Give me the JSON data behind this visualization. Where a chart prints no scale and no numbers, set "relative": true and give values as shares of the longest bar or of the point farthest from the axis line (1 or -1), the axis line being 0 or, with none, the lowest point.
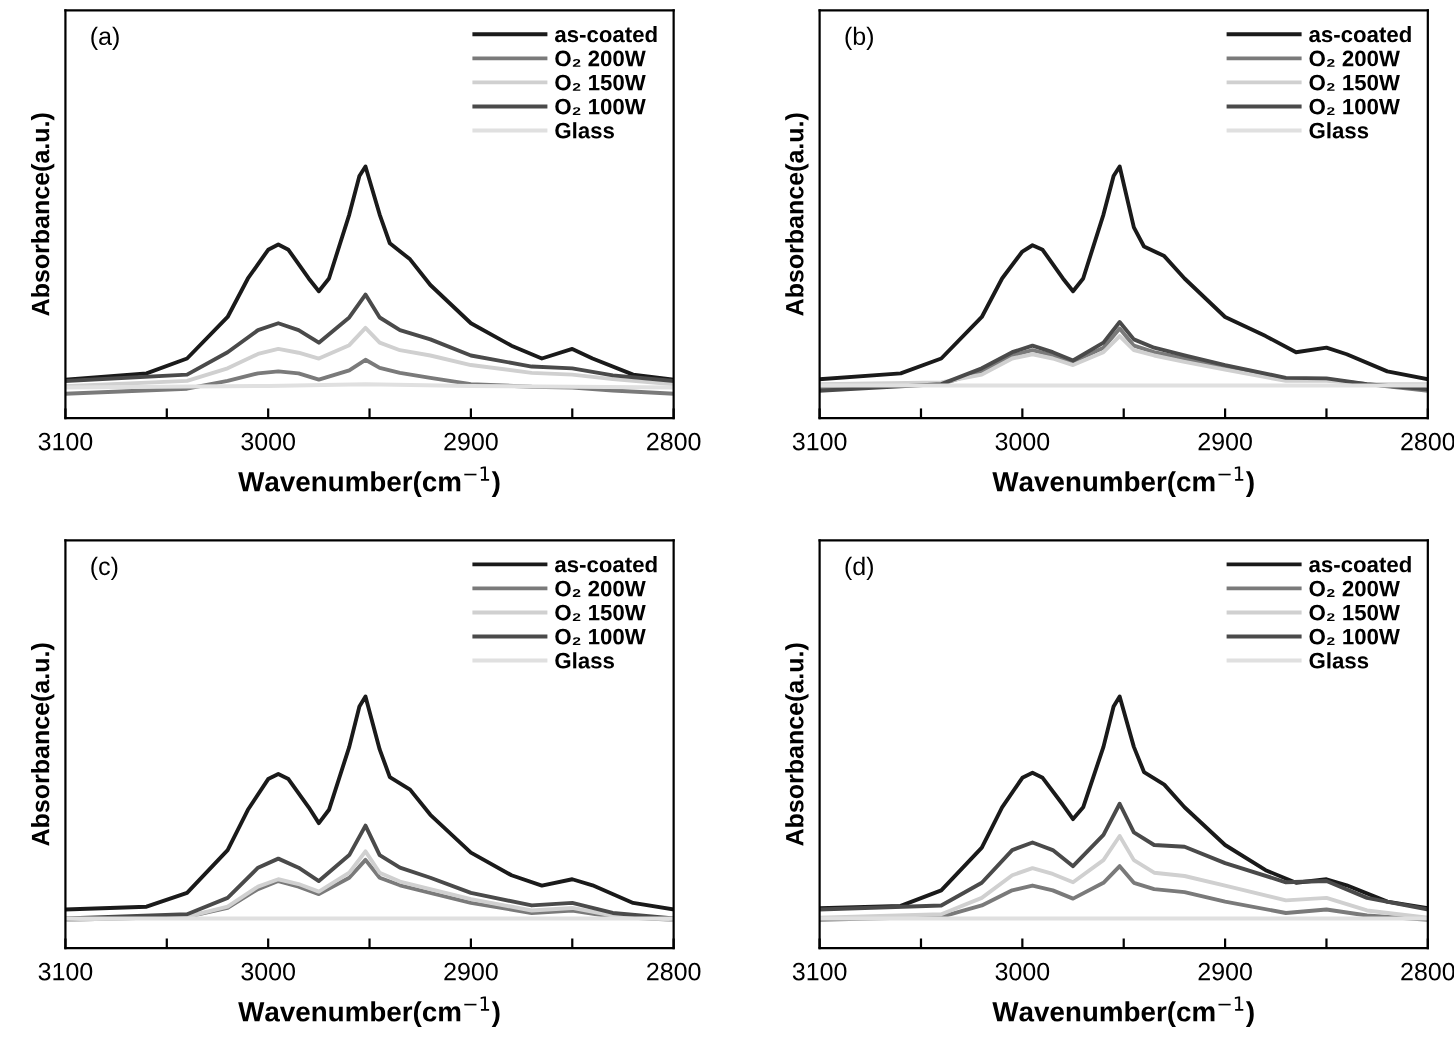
{
  "chart_data": [
    {
      "type": "line",
      "relative": true,
      "annotations": [
        "(a)"
      ],
      "xlabel": "Wavenumber(cm$^{−1}$)",
      "ylabel": "Absorbance(a.u.)",
      "xlim": [
        3100,
        2800
      ],
      "xticks": [
        3100,
        {
          "value": 3050,
          "label": null
        },
        3000,
        {
          "value": 2950,
          "label": null
        },
        2900,
        {
          "value": 2850,
          "label": null
        },
        2800
      ],
      "tick_labels": "x",
      "legend": "top right",
      "series": [
        {
          "name": "as-coated",
          "color": "#1a1a1a",
          "x": [
            3100,
            3060,
            3040,
            3020,
            3010,
            3000,
            2995,
            2990,
            2980,
            2975,
            2970,
            2960,
            2955,
            2952,
            2945,
            2940,
            2930,
            2920,
            2900,
            2880,
            2865,
            2850,
            2840,
            2820,
            2800
          ],
          "values": [
            0.153,
            0.178,
            0.237,
            0.402,
            0.555,
            0.669,
            0.69,
            0.669,
            0.555,
            0.504,
            0.555,
            0.809,
            0.962,
            1.0,
            0.809,
            0.695,
            0.631,
            0.529,
            0.377,
            0.288,
            0.237,
            0.275,
            0.237,
            0.173,
            0.153
          ]
        },
        {
          "name": "O₂ 200W",
          "color": "#7a7a7a",
          "x": [
            3100,
            3040,
            3020,
            3005,
            2995,
            2985,
            2975,
            2960,
            2952,
            2945,
            2935,
            2920,
            2900,
            2870,
            2850,
            2830,
            2800
          ],
          "values": [
            0.097,
            0.117,
            0.148,
            0.178,
            0.186,
            0.178,
            0.153,
            0.19,
            0.232,
            0.2,
            0.18,
            0.16,
            0.135,
            0.125,
            0.122,
            0.11,
            0.097
          ]
        },
        {
          "name": "O₂ 150W",
          "color": "#d0d0d0",
          "x": [
            3100,
            3040,
            3020,
            3005,
            2995,
            2985,
            2975,
            2960,
            2952,
            2945,
            2935,
            2920,
            2900,
            2870,
            2850,
            2830,
            2800
          ],
          "values": [
            0.127,
            0.148,
            0.198,
            0.255,
            0.275,
            0.26,
            0.237,
            0.29,
            0.359,
            0.3,
            0.27,
            0.249,
            0.211,
            0.18,
            0.173,
            0.155,
            0.135
          ]
        },
        {
          "name": "O₂ 100W",
          "color": "#4a4a4a",
          "x": [
            3100,
            3040,
            3020,
            3005,
            2995,
            2985,
            2975,
            2960,
            2952,
            2945,
            2935,
            2920,
            2900,
            2870,
            2850,
            2830,
            2800
          ],
          "values": [
            0.148,
            0.173,
            0.262,
            0.35,
            0.377,
            0.35,
            0.3,
            0.4,
            0.491,
            0.4,
            0.35,
            0.313,
            0.249,
            0.205,
            0.198,
            0.17,
            0.148
          ]
        },
        {
          "name": "Glass",
          "color": "#e0e0e0",
          "x": [
            3100,
            3000,
            2952,
            2900,
            2800
          ],
          "values": [
            0.122,
            0.128,
            0.135,
            0.128,
            0.122
          ]
        }
      ]
    },
    {
      "type": "line",
      "relative": true,
      "annotations": [
        "(b)"
      ],
      "xlabel": "Wavenumber(cm$^{−1}$)",
      "ylabel": "Absorbance(a.u.)",
      "xlim": [
        3100,
        2800
      ],
      "xticks": [
        3100,
        {
          "value": 3050,
          "label": null
        },
        3000,
        {
          "value": 2950,
          "label": null
        },
        2900,
        {
          "value": 2850,
          "label": null
        },
        2800
      ],
      "tick_labels": "x",
      "legend": "top right",
      "series": [
        {
          "name": "as-coated",
          "color": "#1a1a1a",
          "x": [
            3100,
            3060,
            3040,
            3020,
            3010,
            3000,
            2995,
            2990,
            2980,
            2975,
            2970,
            2960,
            2955,
            2952,
            2945,
            2940,
            2930,
            2920,
            2900,
            2880,
            2865,
            2850,
            2840,
            2820,
            2800
          ],
          "values": [
            0.155,
            0.178,
            0.237,
            0.402,
            0.555,
            0.662,
            0.687,
            0.669,
            0.555,
            0.504,
            0.555,
            0.809,
            0.962,
            1.0,
            0.758,
            0.682,
            0.644,
            0.555,
            0.402,
            0.326,
            0.262,
            0.28,
            0.254,
            0.186,
            0.155
          ]
        },
        {
          "name": "O₂ 200W",
          "color": "#7a7a7a",
          "x": [
            3100,
            3040,
            3020,
            3005,
            2995,
            2985,
            2975,
            2960,
            2952,
            2945,
            2935,
            2920,
            2900,
            2870,
            2850,
            2830,
            2800
          ],
          "values": [
            0.117,
            0.135,
            0.186,
            0.249,
            0.27,
            0.249,
            0.224,
            0.28,
            0.356,
            0.288,
            0.262,
            0.237,
            0.204,
            0.153,
            0.153,
            0.135,
            0.109
          ]
        },
        {
          "name": "O₂ 150W",
          "color": "#d0d0d0",
          "x": [
            3100,
            3040,
            3020,
            3005,
            2995,
            2985,
            2975,
            2960,
            2952,
            2945,
            2935,
            2920,
            2900,
            2870,
            2850,
            2830,
            2800
          ],
          "values": [
            0.135,
            0.142,
            0.173,
            0.237,
            0.254,
            0.237,
            0.211,
            0.262,
            0.326,
            0.27,
            0.249,
            0.224,
            0.193,
            0.148,
            0.148,
            0.135,
            0.135
          ]
        },
        {
          "name": "O₂ 100W",
          "color": "#4a4a4a",
          "x": [
            3100,
            3040,
            3020,
            3005,
            2995,
            2985,
            2975,
            2960,
            2952,
            2945,
            2935,
            2920,
            2900,
            2870,
            2850,
            2830,
            2800
          ],
          "values": [
            0.109,
            0.135,
            0.198,
            0.262,
            0.288,
            0.262,
            0.229,
            0.3,
            0.382,
            0.313,
            0.28,
            0.249,
            0.211,
            0.16,
            0.158,
            0.135,
            0.115
          ]
        },
        {
          "name": "Glass",
          "color": "#e0e0e0",
          "x": [
            3100,
            3000,
            2952,
            2900,
            2800
          ],
          "values": [
            0.13,
            0.13,
            0.13,
            0.13,
            0.13
          ]
        }
      ]
    },
    {
      "type": "line",
      "relative": true,
      "annotations": [
        "(c)"
      ],
      "xlabel": "Wavenumber(cm$^{−1}$)",
      "ylabel": "Absorbance(a.u.)",
      "xlim": [
        3100,
        2800
      ],
      "xticks": [
        3100,
        {
          "value": 3050,
          "label": null
        },
        3000,
        {
          "value": 2950,
          "label": null
        },
        2900,
        {
          "value": 2850,
          "label": null
        },
        2800
      ],
      "tick_labels": "x",
      "legend": "top right",
      "series": [
        {
          "name": "as-coated",
          "color": "#1a1a1a",
          "x": [
            3100,
            3060,
            3040,
            3020,
            3010,
            3000,
            2995,
            2990,
            2980,
            2975,
            2970,
            2960,
            2955,
            2952,
            2945,
            2940,
            2930,
            2920,
            2900,
            2880,
            2865,
            2850,
            2840,
            2820,
            2800
          ],
          "values": [
            0.154,
            0.165,
            0.22,
            0.39,
            0.55,
            0.672,
            0.692,
            0.672,
            0.56,
            0.497,
            0.55,
            0.8,
            0.96,
            1.0,
            0.79,
            0.68,
            0.63,
            0.53,
            0.38,
            0.29,
            0.249,
            0.274,
            0.25,
            0.18,
            0.154
          ]
        },
        {
          "name": "O₂ 200W",
          "color": "#7a7a7a",
          "x": [
            3100,
            3040,
            3020,
            3005,
            2995,
            2985,
            2975,
            2960,
            2952,
            2945,
            2935,
            2920,
            2900,
            2870,
            2850,
            2830,
            2800
          ],
          "values": [
            0.113,
            0.125,
            0.16,
            0.235,
            0.267,
            0.245,
            0.215,
            0.28,
            0.351,
            0.28,
            0.25,
            0.22,
            0.18,
            0.14,
            0.15,
            0.125,
            0.113
          ]
        },
        {
          "name": "O₂ 150W",
          "color": "#d0d0d0",
          "x": [
            3100,
            3040,
            3020,
            3005,
            2995,
            2985,
            2975,
            2960,
            2952,
            2945,
            2935,
            2920,
            2900,
            2870,
            2850,
            2830,
            2800
          ],
          "values": [
            0.113,
            0.125,
            0.165,
            0.245,
            0.274,
            0.255,
            0.225,
            0.3,
            0.385,
            0.3,
            0.265,
            0.235,
            0.195,
            0.15,
            0.16,
            0.13,
            0.113
          ]
        },
        {
          "name": "O₂ 100W",
          "color": "#4a4a4a",
          "x": [
            3100,
            3040,
            3020,
            3005,
            2995,
            2985,
            2975,
            2960,
            2952,
            2945,
            2935,
            2920,
            2900,
            2870,
            2850,
            2830,
            2800
          ],
          "values": [
            0.118,
            0.135,
            0.2,
            0.32,
            0.356,
            0.32,
            0.267,
            0.37,
            0.487,
            0.37,
            0.32,
            0.28,
            0.22,
            0.17,
            0.18,
            0.14,
            0.118
          ]
        },
        {
          "name": "Glass",
          "color": "#e0e0e0",
          "x": [
            3100,
            3000,
            2952,
            2900,
            2800
          ],
          "values": [
            0.118,
            0.118,
            0.118,
            0.118,
            0.118
          ]
        }
      ]
    },
    {
      "type": "line",
      "relative": true,
      "annotations": [
        "(d)"
      ],
      "xlabel": "Wavenumber(cm$^{−1}$)",
      "ylabel": "Absorbance(a.u.)",
      "xlim": [
        3100,
        2800
      ],
      "xticks": [
        3100,
        {
          "value": 3050,
          "label": null
        },
        3000,
        {
          "value": 2950,
          "label": null
        },
        2900,
        {
          "value": 2850,
          "label": null
        },
        2800
      ],
      "tick_labels": "x",
      "legend": "top right",
      "series": [
        {
          "name": "as-coated",
          "color": "#1a1a1a",
          "x": [
            3100,
            3060,
            3040,
            3020,
            3010,
            3000,
            2995,
            2990,
            2980,
            2975,
            2970,
            2960,
            2955,
            2952,
            2945,
            2940,
            2930,
            2920,
            2900,
            2880,
            2865,
            2850,
            2840,
            2820,
            2800
          ],
          "values": [
            0.159,
            0.168,
            0.23,
            0.4,
            0.56,
            0.677,
            0.697,
            0.677,
            0.57,
            0.513,
            0.56,
            0.8,
            0.96,
            1.0,
            0.8,
            0.7,
            0.65,
            0.56,
            0.41,
            0.31,
            0.26,
            0.274,
            0.25,
            0.185,
            0.159
          ]
        },
        {
          "name": "O₂ 200W",
          "color": "#7a7a7a",
          "x": [
            3100,
            3040,
            3020,
            3005,
            2995,
            2985,
            2975,
            2960,
            2952,
            2945,
            2935,
            2920,
            2900,
            2870,
            2850,
            2830,
            2800
          ],
          "values": [
            0.113,
            0.125,
            0.17,
            0.23,
            0.249,
            0.23,
            0.197,
            0.26,
            0.326,
            0.26,
            0.235,
            0.223,
            0.185,
            0.14,
            0.154,
            0.13,
            0.113
          ]
        },
        {
          "name": "O₂ 150W",
          "color": "#d0d0d0",
          "x": [
            3100,
            3040,
            3020,
            3005,
            2995,
            2985,
            2975,
            2960,
            2952,
            2945,
            2935,
            2920,
            2900,
            2870,
            2850,
            2830,
            2800
          ],
          "values": [
            0.121,
            0.135,
            0.2,
            0.29,
            0.318,
            0.295,
            0.262,
            0.35,
            0.446,
            0.35,
            0.3,
            0.287,
            0.249,
            0.19,
            0.2,
            0.15,
            0.121
          ]
        },
        {
          "name": "O₂ 100W",
          "color": "#4a4a4a",
          "x": [
            3100,
            3040,
            3020,
            3005,
            2995,
            2985,
            2975,
            2960,
            2952,
            2945,
            2935,
            2920,
            2900,
            2870,
            2850,
            2830,
            2800
          ],
          "values": [
            0.154,
            0.17,
            0.26,
            0.39,
            0.42,
            0.39,
            0.326,
            0.45,
            0.574,
            0.46,
            0.41,
            0.403,
            0.338,
            0.262,
            0.267,
            0.2,
            0.154
          ]
        },
        {
          "name": "Glass",
          "color": "#e0e0e0",
          "x": [
            3100,
            3000,
            2952,
            2900,
            2800
          ],
          "values": [
            0.118,
            0.118,
            0.118,
            0.118,
            0.118
          ]
        }
      ]
    }
  ]
}
